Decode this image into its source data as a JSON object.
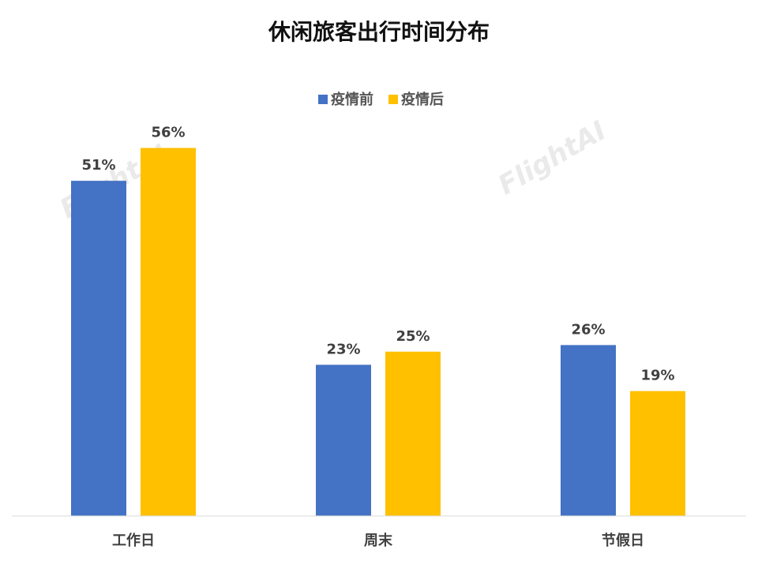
{
  "chart_data": {
    "type": "bar",
    "title": "休闲旅客出行时间分布",
    "categories": [
      "工作日",
      "周末",
      "节假日"
    ],
    "series": [
      {
        "name": "疫情前",
        "values": [
          51,
          23,
          26
        ],
        "color": "#4472C4"
      },
      {
        "name": "疫情后",
        "values": [
          56,
          25,
          19
        ],
        "color": "#FFC000"
      }
    ],
    "value_suffix": "%",
    "ylim": [
      0,
      60
    ],
    "grid": false,
    "legend_position": "top-center",
    "watermark": "FlightAI"
  }
}
